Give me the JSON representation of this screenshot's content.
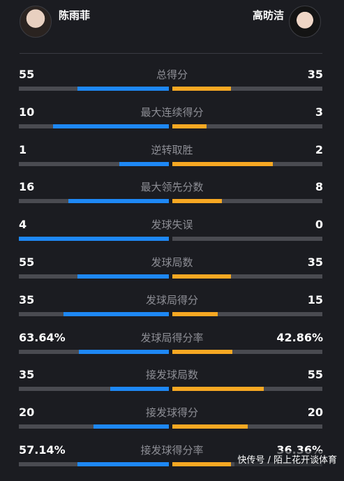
{
  "players": {
    "left": {
      "name": "陈雨菲",
      "color": "#1e88f5"
    },
    "right": {
      "name": "高昉洁",
      "color": "#f7a823"
    }
  },
  "stats": [
    {
      "label": "总得分",
      "left": "55",
      "right": "35",
      "left_share": 0.61,
      "right_share": 0.39
    },
    {
      "label": "最大连续得分",
      "left": "10",
      "right": "3",
      "left_share": 0.77,
      "right_share": 0.23
    },
    {
      "label": "逆转取胜",
      "left": "1",
      "right": "2",
      "left_share": 0.33,
      "right_share": 0.67
    },
    {
      "label": "最大领先分数",
      "left": "16",
      "right": "8",
      "left_share": 0.67,
      "right_share": 0.33
    },
    {
      "label": "发球失误",
      "left": "4",
      "right": "0",
      "left_share": 1.0,
      "right_share": 0.0
    },
    {
      "label": "发球局数",
      "left": "55",
      "right": "35",
      "left_share": 0.61,
      "right_share": 0.39
    },
    {
      "label": "发球局得分",
      "left": "35",
      "right": "15",
      "left_share": 0.7,
      "right_share": 0.3
    },
    {
      "label": "发球局得分率",
      "left": "63.64%",
      "right": "42.86%",
      "left_share": 0.6,
      "right_share": 0.4
    },
    {
      "label": "接发球局数",
      "left": "35",
      "right": "55",
      "left_share": 0.39,
      "right_share": 0.61
    },
    {
      "label": "接发球得分",
      "left": "20",
      "right": "20",
      "left_share": 0.5,
      "right_share": 0.5
    },
    {
      "label": "接发球得分率",
      "left": "57.14%",
      "right": "36.36%",
      "left_share": 0.61,
      "right_share": 0.39
    }
  ],
  "watermark": "快传号 / 陌上花开谈体育"
}
